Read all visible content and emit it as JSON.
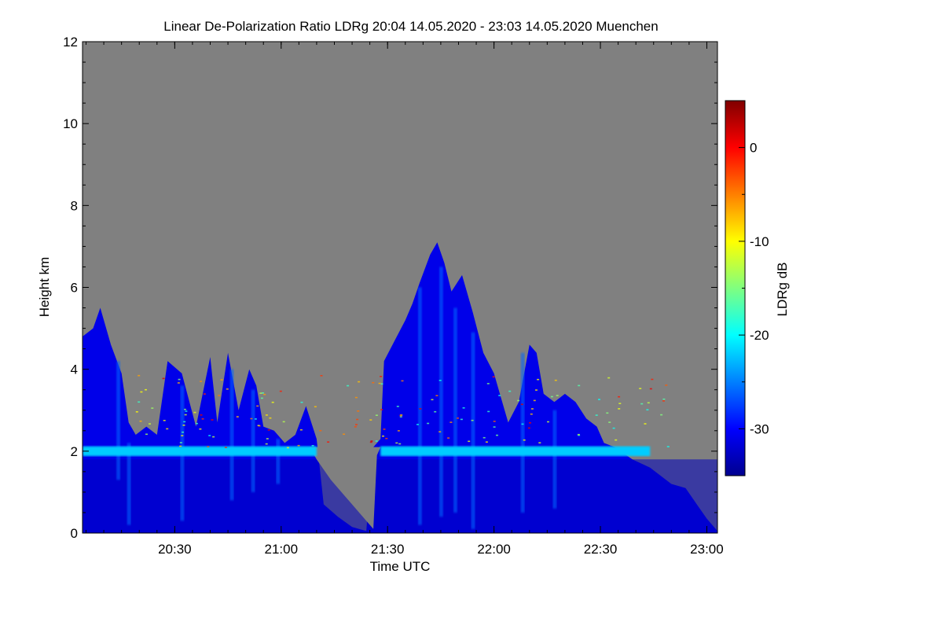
{
  "chart_data": {
    "type": "heatmap",
    "title": "Linear De-Polarization Ratio LDRg   20:04 14.05.2020 - 23:03 14.05.2020 Muenchen",
    "xlabel": "Time UTC",
    "ylabel": "Height km",
    "x_range": [
      "20:04",
      "23:03"
    ],
    "xlim_minutes": [
      0,
      179
    ],
    "x_ticks": [
      {
        "label": "20:30",
        "minute": 26
      },
      {
        "label": "21:00",
        "minute": 56
      },
      {
        "label": "21:30",
        "minute": 86
      },
      {
        "label": "22:00",
        "minute": 116
      },
      {
        "label": "22:30",
        "minute": 146
      },
      {
        "label": "23:00",
        "minute": 176
      }
    ],
    "ylim": [
      0,
      12
    ],
    "y_ticks": [
      "0",
      "2",
      "4",
      "6",
      "8",
      "10",
      "12"
    ],
    "no_data_color": "#808080",
    "colorbar": {
      "label": "LDRg dB",
      "range": [
        -35,
        5
      ],
      "ticks": [
        "0",
        "-10",
        "-20",
        "-30"
      ],
      "tick_values": [
        0,
        -10,
        -20,
        -30
      ],
      "colormap": "jet"
    },
    "features": {
      "cloud_top_profile_km": [
        [
          0,
          4.8
        ],
        [
          3,
          5.0
        ],
        [
          5,
          5.5
        ],
        [
          8,
          4.6
        ],
        [
          11,
          3.9
        ],
        [
          13,
          2.7
        ],
        [
          15,
          2.4
        ],
        [
          18,
          2.6
        ],
        [
          21,
          2.4
        ],
        [
          24,
          4.2
        ],
        [
          28,
          3.9
        ],
        [
          32,
          2.6
        ],
        [
          36,
          4.3
        ],
        [
          38,
          2.7
        ],
        [
          41,
          4.4
        ],
        [
          44,
          3.0
        ],
        [
          47,
          4.0
        ],
        [
          49,
          3.6
        ],
        [
          51,
          2.6
        ],
        [
          54,
          2.5
        ],
        [
          57,
          2.2
        ],
        [
          60,
          2.4
        ],
        [
          63,
          3.1
        ],
        [
          66,
          2.3
        ],
        [
          68,
          0.7
        ],
        [
          72,
          0.4
        ],
        [
          76,
          0.15
        ],
        [
          80,
          0.05
        ],
        [
          82,
          2.1
        ],
        [
          84,
          2.3
        ],
        [
          85,
          4.2
        ],
        [
          88,
          4.7
        ],
        [
          91,
          5.2
        ],
        [
          93,
          5.6
        ],
        [
          95,
          6.1
        ],
        [
          98,
          6.8
        ],
        [
          100,
          7.1
        ],
        [
          102,
          6.6
        ],
        [
          104,
          5.9
        ],
        [
          107,
          6.3
        ],
        [
          110,
          5.4
        ],
        [
          113,
          4.4
        ],
        [
          116,
          3.9
        ],
        [
          118,
          3.3
        ],
        [
          120,
          2.7
        ],
        [
          123,
          3.2
        ],
        [
          126,
          4.6
        ],
        [
          128,
          4.4
        ],
        [
          130,
          3.4
        ],
        [
          133,
          3.2
        ],
        [
          136,
          3.4
        ],
        [
          139,
          3.2
        ],
        [
          142,
          2.8
        ],
        [
          145,
          2.6
        ],
        [
          147,
          2.2
        ],
        [
          150,
          2.1
        ],
        [
          155,
          1.8
        ],
        [
          160,
          1.6
        ],
        [
          166,
          1.2
        ],
        [
          170,
          1.1
        ],
        [
          174,
          0.6
        ],
        [
          176,
          0.35
        ],
        [
          179,
          0.05
        ]
      ],
      "bright_layer_height_km": 2.0,
      "bright_layer_ldr_db": -22
    }
  }
}
